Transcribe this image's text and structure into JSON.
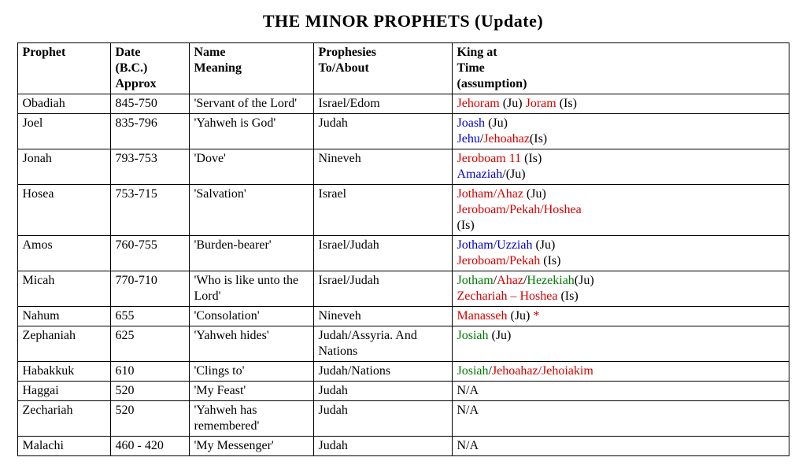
{
  "title": "THE MINOR PROPHETS (Update)",
  "colors": {
    "text": "#000000",
    "red": "#d40000",
    "blue": "#0000c8",
    "green": "#007a00"
  },
  "headers": {
    "prophet": "Prophet",
    "date_l1": "Date",
    "date_l2": "(B.C.)",
    "date_l3": "Approx",
    "meaning_l1": "Name",
    "meaning_l2": "Meaning",
    "proph_l1": "Prophesies",
    "proph_l2": "To/About",
    "king_l1": "King at",
    "king_l2": "Time",
    "king_l3": "(assumption)"
  },
  "rows": [
    {
      "prophet": "Obadiah",
      "date": "845-750",
      "meaning": "'Servant of the Lord'",
      "prophesies": "Israel/Edom",
      "king": [
        {
          "t": "Jehoram",
          "c": "red"
        },
        {
          "t": " (Ju) ",
          "c": "text"
        },
        {
          "t": "Joram",
          "c": "red"
        },
        {
          "t": " (Is)",
          "c": "text"
        }
      ]
    },
    {
      "prophet": "Joel",
      "date": "835-796",
      "meaning": "'Yahweh is God'",
      "prophesies": "Judah",
      "king": [
        {
          "t": "Joash",
          "c": "blue"
        },
        {
          "t": " (Ju)",
          "c": "text"
        },
        {
          "br": true
        },
        {
          "t": "Jehu",
          "c": "blue"
        },
        {
          "t": "/",
          "c": "text"
        },
        {
          "t": "Jehoahaz",
          "c": "red"
        },
        {
          "t": "(Is)",
          "c": "text"
        }
      ]
    },
    {
      "prophet": "Jonah",
      "date": "793-753",
      "meaning": "'Dove'",
      "prophesies": "Nineveh",
      "king": [
        {
          "t": "Jeroboam 11",
          "c": "red"
        },
        {
          "t": " (Is)",
          "c": "text"
        },
        {
          "br": true
        },
        {
          "t": "Amaziah",
          "c": "blue"
        },
        {
          "t": "/(Ju)",
          "c": "text"
        }
      ]
    },
    {
      "prophet": "Hosea",
      "date": "753-715",
      "meaning": "'Salvation'",
      "prophesies": "Israel",
      "king": [
        {
          "t": "Jotham/Ahaz",
          "c": "red"
        },
        {
          "t": " (Ju)",
          "c": "text"
        },
        {
          "br": true
        },
        {
          "t": "Jeroboam/Pekah/Hoshea",
          "c": "red"
        },
        {
          "br": true
        },
        {
          "t": "(Is)",
          "c": "text"
        }
      ]
    },
    {
      "prophet": "Amos",
      "date": "760-755",
      "meaning": "'Burden-bearer'",
      "prophesies": "Israel/Judah",
      "king": [
        {
          "t": "Jotham/Uzziah",
          "c": "blue"
        },
        {
          "t": " (Ju)",
          "c": "text"
        },
        {
          "br": true
        },
        {
          "t": "Jeroboam/Pekah",
          "c": "red"
        },
        {
          "t": "  (Is)",
          "c": "text"
        }
      ]
    },
    {
      "prophet": "Micah",
      "date": "770-710",
      "meaning": "'Who is like unto the Lord'",
      "prophesies": "Israel/Judah",
      "king": [
        {
          "t": "Jotham",
          "c": "green"
        },
        {
          "t": "/",
          "c": "text"
        },
        {
          "t": "Ahaz",
          "c": "red"
        },
        {
          "t": "/",
          "c": "text"
        },
        {
          "t": "Hezekiah",
          "c": "green"
        },
        {
          "t": "(Ju)",
          "c": "text"
        },
        {
          "br": true
        },
        {
          "t": "Zechariah – Hoshea",
          "c": "red"
        },
        {
          "t": " (Is)",
          "c": "text"
        }
      ]
    },
    {
      "prophet": "Nahum",
      "date": "655",
      "meaning": "'Consolation'",
      "prophesies": "Nineveh",
      "king": [
        {
          "t": "Manasseh",
          "c": "red"
        },
        {
          "t": " (Ju) ",
          "c": "text"
        },
        {
          "t": "*",
          "c": "red"
        }
      ]
    },
    {
      "prophet": "Zephaniah",
      "date": "625",
      "meaning": "'Yahweh hides'",
      "prophesies": "Judah/Assyria. And Nations",
      "king": [
        {
          "t": "Josiah",
          "c": "green"
        },
        {
          "t": " (Ju)",
          "c": "text"
        }
      ]
    },
    {
      "prophet": "Habakkuk",
      "date": "610",
      "meaning": "'Clings to'",
      "prophesies": "Judah/Nations",
      "king": [
        {
          "t": "Josiah",
          "c": "green"
        },
        {
          "t": "/",
          "c": "text"
        },
        {
          "t": "Jehoahaz/Jehoiakim",
          "c": "red"
        }
      ]
    },
    {
      "prophet": "Haggai",
      "date": "520",
      "meaning": "'My Feast'",
      "prophesies": "Judah",
      "king": [
        {
          "t": "N/A",
          "c": "text"
        }
      ]
    },
    {
      "prophet": "Zechariah",
      "date": "520",
      "meaning": "'Yahweh has remembered'",
      "prophesies": "Judah",
      "king": [
        {
          "t": "N/A",
          "c": "text"
        }
      ]
    },
    {
      "prophet": "Malachi",
      "date": "460 - 420",
      "meaning": "'My Messenger'",
      "prophesies": "Judah",
      "king": [
        {
          "t": "N/A",
          "c": "text"
        }
      ]
    }
  ]
}
